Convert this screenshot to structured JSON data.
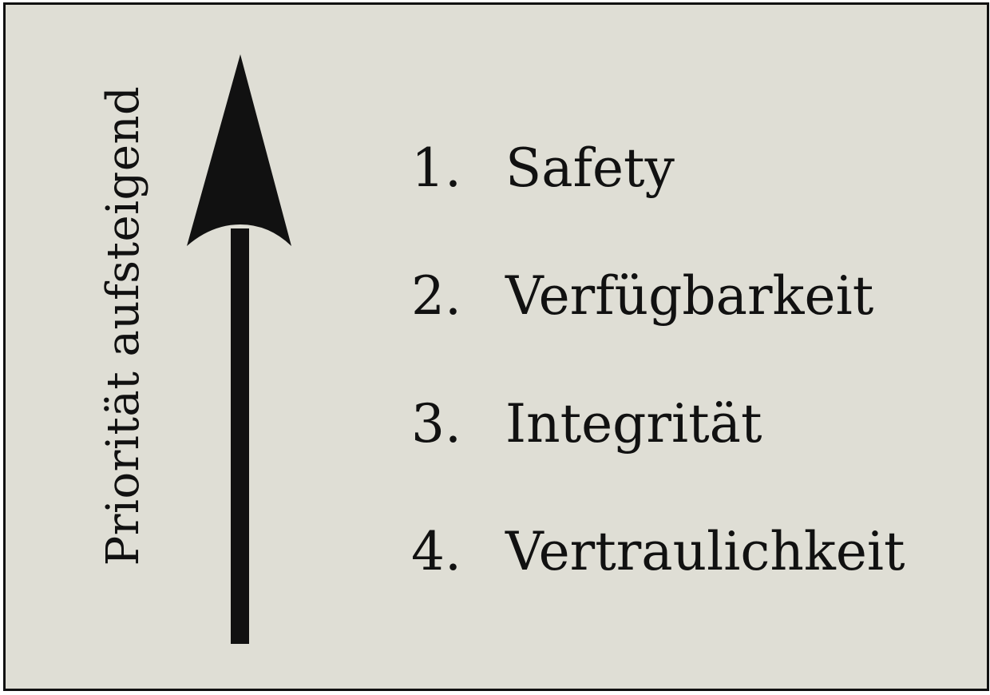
{
  "axis_label": "Priorität aufsteigend",
  "items": [
    {
      "number": "1.",
      "label": "Safety"
    },
    {
      "number": "2.",
      "label": "Verfügbarkeit"
    },
    {
      "number": "3.",
      "label": "Integrität"
    },
    {
      "number": "4.",
      "label": "Vertraulichkeit"
    }
  ],
  "colors": {
    "background": "#dfded5",
    "ink": "#111111",
    "border": "#111111"
  },
  "icons": {
    "arrow": "up-arrow-icon"
  }
}
